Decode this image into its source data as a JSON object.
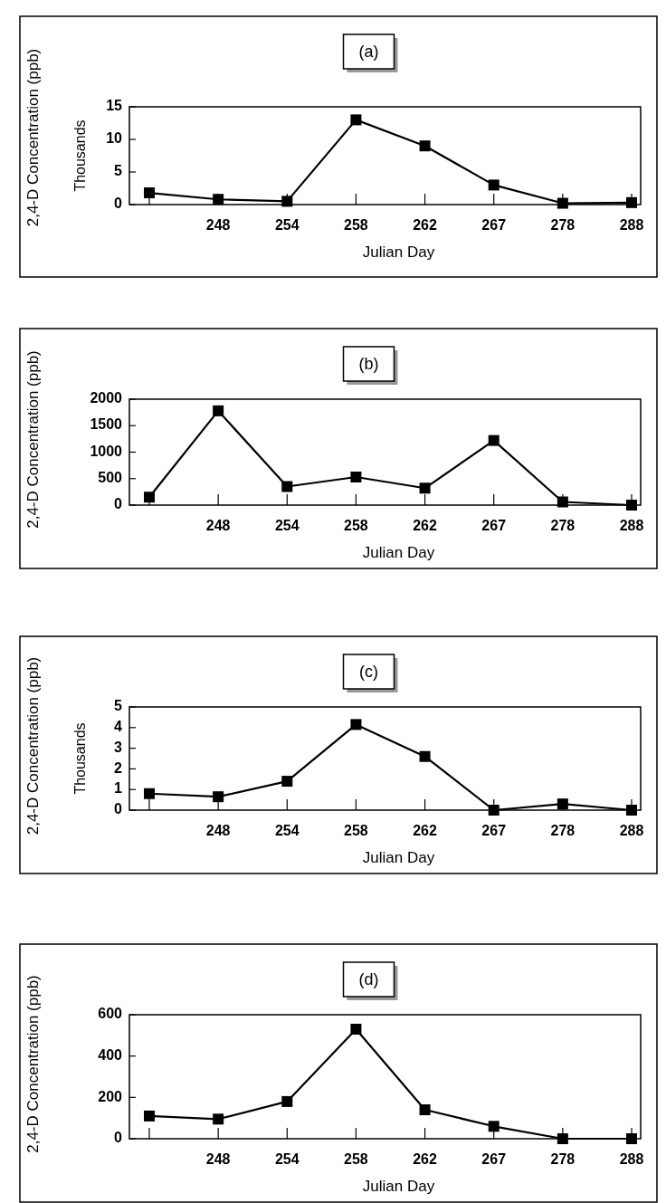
{
  "chart_data": [
    {
      "type": "line",
      "title": "(a)",
      "ylabel": "2,4-D Concentration (ppb)",
      "annotations": [
        "Thousands"
      ],
      "xlabel": "Julian Day",
      "categories": [
        null,
        "248",
        "254",
        "258",
        "262",
        "267",
        "278",
        "288"
      ],
      "values": [
        1.8,
        0.8,
        0.5,
        13,
        9,
        3,
        0.2,
        0.3
      ],
      "color": "#000000",
      "ylim": [
        0,
        15
      ],
      "yticks": [
        0,
        5,
        10,
        15
      ],
      "marker": "square"
    },
    {
      "type": "line",
      "title": "(b)",
      "ylabel": "2,4-D Concentration (ppb)",
      "xlabel": "Julian Day",
      "categories": [
        null,
        "248",
        "254",
        "258",
        "262",
        "267",
        "278",
        "288"
      ],
      "values": [
        150,
        1780,
        350,
        530,
        320,
        1220,
        60,
        0
      ],
      "color": "#000000",
      "ylim": [
        0,
        2000
      ],
      "yticks": [
        0,
        500,
        1000,
        1500,
        2000
      ],
      "marker": "square"
    },
    {
      "type": "line",
      "title": "(c)",
      "ylabel": "2,4-D Concentration (ppb)",
      "annotations": [
        "Thousands"
      ],
      "xlabel": "Julian Day",
      "categories": [
        null,
        "248",
        "254",
        "258",
        "262",
        "267",
        "278",
        "288"
      ],
      "values": [
        0.8,
        0.65,
        1.4,
        4.15,
        2.6,
        0,
        0.3,
        0
      ],
      "color": "#000000",
      "ylim": [
        0,
        5
      ],
      "yticks": [
        0,
        1,
        2,
        3,
        4,
        5
      ],
      "marker": "square"
    },
    {
      "type": "line",
      "title": "(d)",
      "ylabel": "2,4-D Concentration (ppb)",
      "xlabel": "Julian Day",
      "categories": [
        null,
        "248",
        "254",
        "258",
        "262",
        "267",
        "278",
        "288"
      ],
      "values": [
        110,
        95,
        180,
        530,
        140,
        60,
        0,
        0
      ],
      "color": "#000000",
      "ylim": [
        0,
        600
      ],
      "yticks": [
        0,
        200,
        400,
        600
      ],
      "marker": "square"
    }
  ]
}
